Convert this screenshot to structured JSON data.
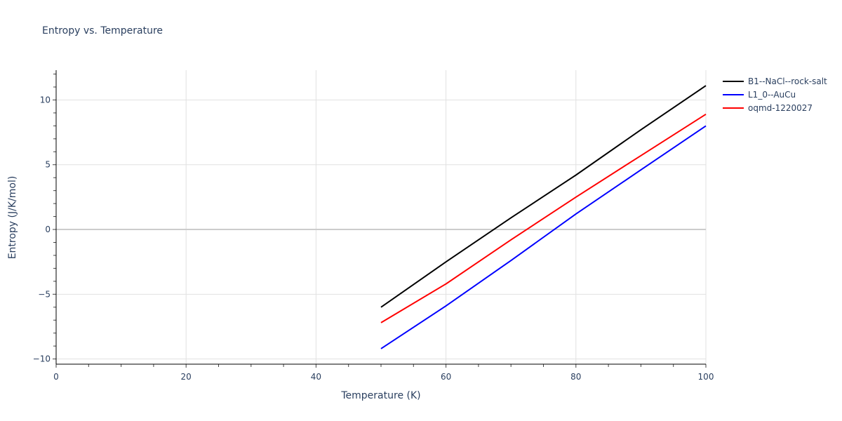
{
  "chart_data": {
    "type": "line",
    "title": "Entropy vs. Temperature",
    "xlabel": "Temperature (K)",
    "ylabel": "Entropy (J/K/mol)",
    "xlim": [
      0,
      100
    ],
    "ylim": [
      -10.4,
      12.3
    ],
    "x_ticks": [
      0,
      20,
      40,
      60,
      80,
      100
    ],
    "y_ticks": [
      -10,
      -5,
      0,
      5,
      10
    ],
    "x_tick_labels": [
      "0",
      "20",
      "40",
      "60",
      "80",
      "100"
    ],
    "y_tick_labels": [
      "−10",
      "−5",
      "0",
      "5",
      "10"
    ],
    "grid": true,
    "legend_position": "right-top",
    "x": [
      50,
      60,
      70,
      80,
      90,
      100
    ],
    "series": [
      {
        "name": "B1--NaCl--rock-salt",
        "color": "#000000",
        "values": [
          -6.0,
          -2.5,
          0.9,
          4.2,
          7.7,
          11.1
        ]
      },
      {
        "name": "L1_0--AuCu",
        "color": "#0000ff",
        "values": [
          -9.2,
          -5.9,
          -2.4,
          1.2,
          4.6,
          8.0
        ]
      },
      {
        "name": "oqmd-1220027",
        "color": "#ff0000",
        "values": [
          -7.2,
          -4.2,
          -0.8,
          2.5,
          5.7,
          8.9
        ]
      }
    ]
  },
  "title": "Entropy vs. Temperature",
  "xaxis": {
    "title": "Temperature (K)"
  },
  "yaxis": {
    "title": "Entropy (J/K/mol)"
  },
  "legend": {
    "items": [
      {
        "label": "B1--NaCl--rock-salt",
        "color": "#000000"
      },
      {
        "label": "L1_0--AuCu",
        "color": "#0000ff"
      },
      {
        "label": "oqmd-1220027",
        "color": "#ff0000"
      }
    ]
  }
}
